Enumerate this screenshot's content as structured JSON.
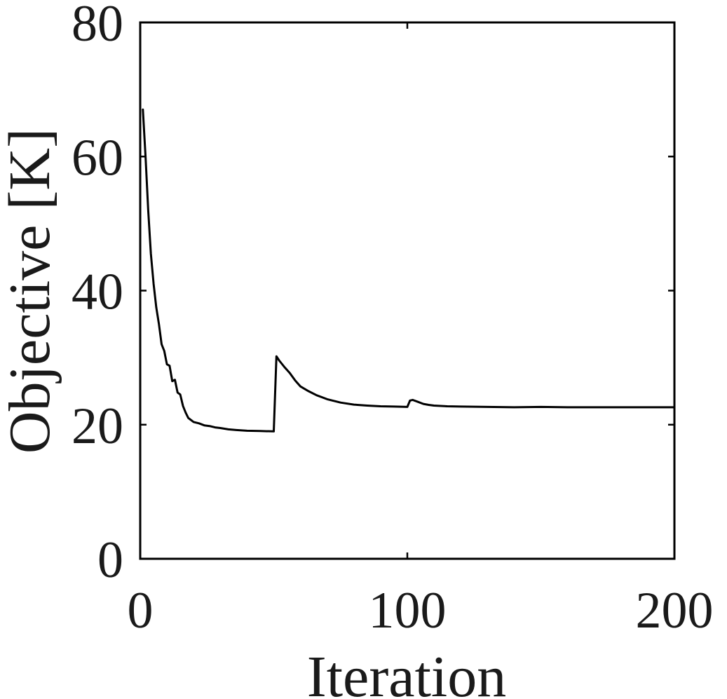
{
  "chart_data": {
    "type": "line",
    "xlabel": "Iteration",
    "ylabel": "Objective [K]",
    "xlim": [
      0,
      200
    ],
    "ylim": [
      0,
      80
    ],
    "xticks": [
      0,
      100,
      200
    ],
    "yticks": [
      0,
      20,
      40,
      60,
      80
    ],
    "grid": false,
    "box": true,
    "series": [
      {
        "color": "#000000",
        "x": [
          1,
          2,
          3,
          4,
          5,
          6,
          7,
          8,
          9,
          10,
          11,
          12,
          13,
          14,
          15,
          16,
          17,
          18,
          19,
          20,
          22,
          24,
          26,
          28,
          30,
          33,
          36,
          40,
          45,
          50,
          51,
          52,
          54,
          56,
          58,
          60,
          63,
          66,
          70,
          75,
          80,
          85,
          90,
          95,
          100,
          101,
          102,
          104,
          106,
          108,
          110,
          115,
          120,
          130,
          140,
          150,
          160,
          170,
          180,
          190,
          200
        ],
        "y": [
          67,
          60,
          52,
          45.5,
          41,
          37.5,
          35,
          32,
          31,
          29,
          28.8,
          26.5,
          26.7,
          24.8,
          24.5,
          22.8,
          21.8,
          21,
          20.7,
          20.4,
          20.2,
          19.9,
          19.8,
          19.6,
          19.5,
          19.3,
          19.2,
          19.1,
          19.05,
          19,
          30.2,
          29.6,
          28.6,
          27.7,
          26.6,
          25.7,
          25,
          24.4,
          23.8,
          23.3,
          23,
          22.85,
          22.75,
          22.7,
          22.65,
          23.6,
          23.7,
          23.4,
          23.1,
          22.95,
          22.85,
          22.75,
          22.7,
          22.65,
          22.6,
          22.65,
          22.6,
          22.6,
          22.6,
          22.6,
          22.6
        ]
      }
    ]
  }
}
